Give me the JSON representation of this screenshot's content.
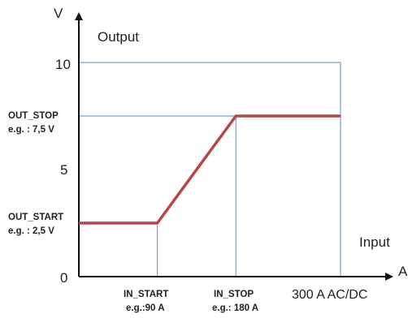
{
  "chart_data": {
    "type": "line",
    "title": "Output",
    "xlabel": "Input",
    "ylabel": "V",
    "x_unit": "A",
    "xlim": [
      0,
      300
    ],
    "ylim": [
      0,
      10
    ],
    "grid": false,
    "y_ticks": [
      {
        "value": 0,
        "label": "0"
      },
      {
        "value": 5,
        "label": "5"
      },
      {
        "value": 10,
        "label": "10"
      }
    ],
    "x_markers": [
      {
        "value": 90,
        "name": "IN_START",
        "example": "e.g.:90 A"
      },
      {
        "value": 180,
        "name": "IN_STOP",
        "example": "e.g.: 180 A"
      },
      {
        "value": 300,
        "name": "300 A AC/DC",
        "example": ""
      }
    ],
    "y_markers": [
      {
        "value": 7.5,
        "name": "OUT_STOP",
        "example": "e.g. : 7,5 V"
      },
      {
        "value": 2.5,
        "name": "OUT_START",
        "example": "e.g. : 2,5 V"
      }
    ],
    "series": [
      {
        "x": [
          0,
          90,
          180,
          300
        ],
        "y": [
          2.5,
          2.5,
          7.5,
          7.5
        ],
        "color": "#b5474a"
      }
    ],
    "colors": {
      "guide": "#6ea6d6",
      "axis": "#111111",
      "curve": "#b5474a"
    }
  }
}
